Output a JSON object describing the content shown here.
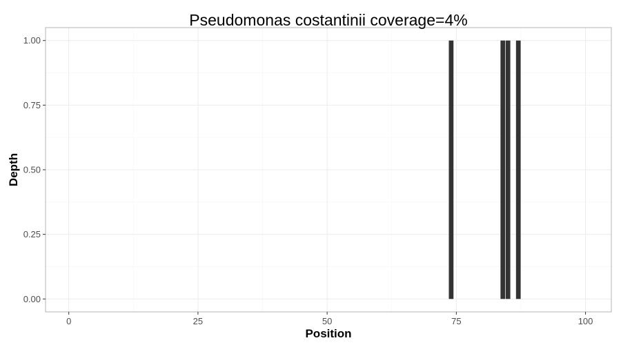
{
  "chart_data": {
    "type": "bar",
    "title": "Pseudomonas costantinii coverage=4%",
    "xlabel": "Position",
    "ylabel": "Depth",
    "xlim": [
      -4.5,
      105
    ],
    "ylim": [
      -0.05,
      1.05
    ],
    "xticks": [
      0,
      25,
      50,
      75,
      100
    ],
    "yticks": [
      0.0,
      0.25,
      0.5,
      0.75,
      1.0
    ],
    "ytick_labels": [
      "0.00",
      "0.25",
      "0.50",
      "0.75",
      "1.00"
    ],
    "xtick_labels": [
      "0",
      "25",
      "50",
      "75",
      "100"
    ],
    "x": [
      74,
      84,
      85,
      87
    ],
    "values": [
      1,
      1,
      1,
      1
    ],
    "bar_width": 0.9,
    "grid": true,
    "colors": {
      "bar": "#333333",
      "grid_major": "#ebebeb",
      "grid_minor": "#f5f5f5",
      "panel_border": "#b3b3b3"
    }
  }
}
